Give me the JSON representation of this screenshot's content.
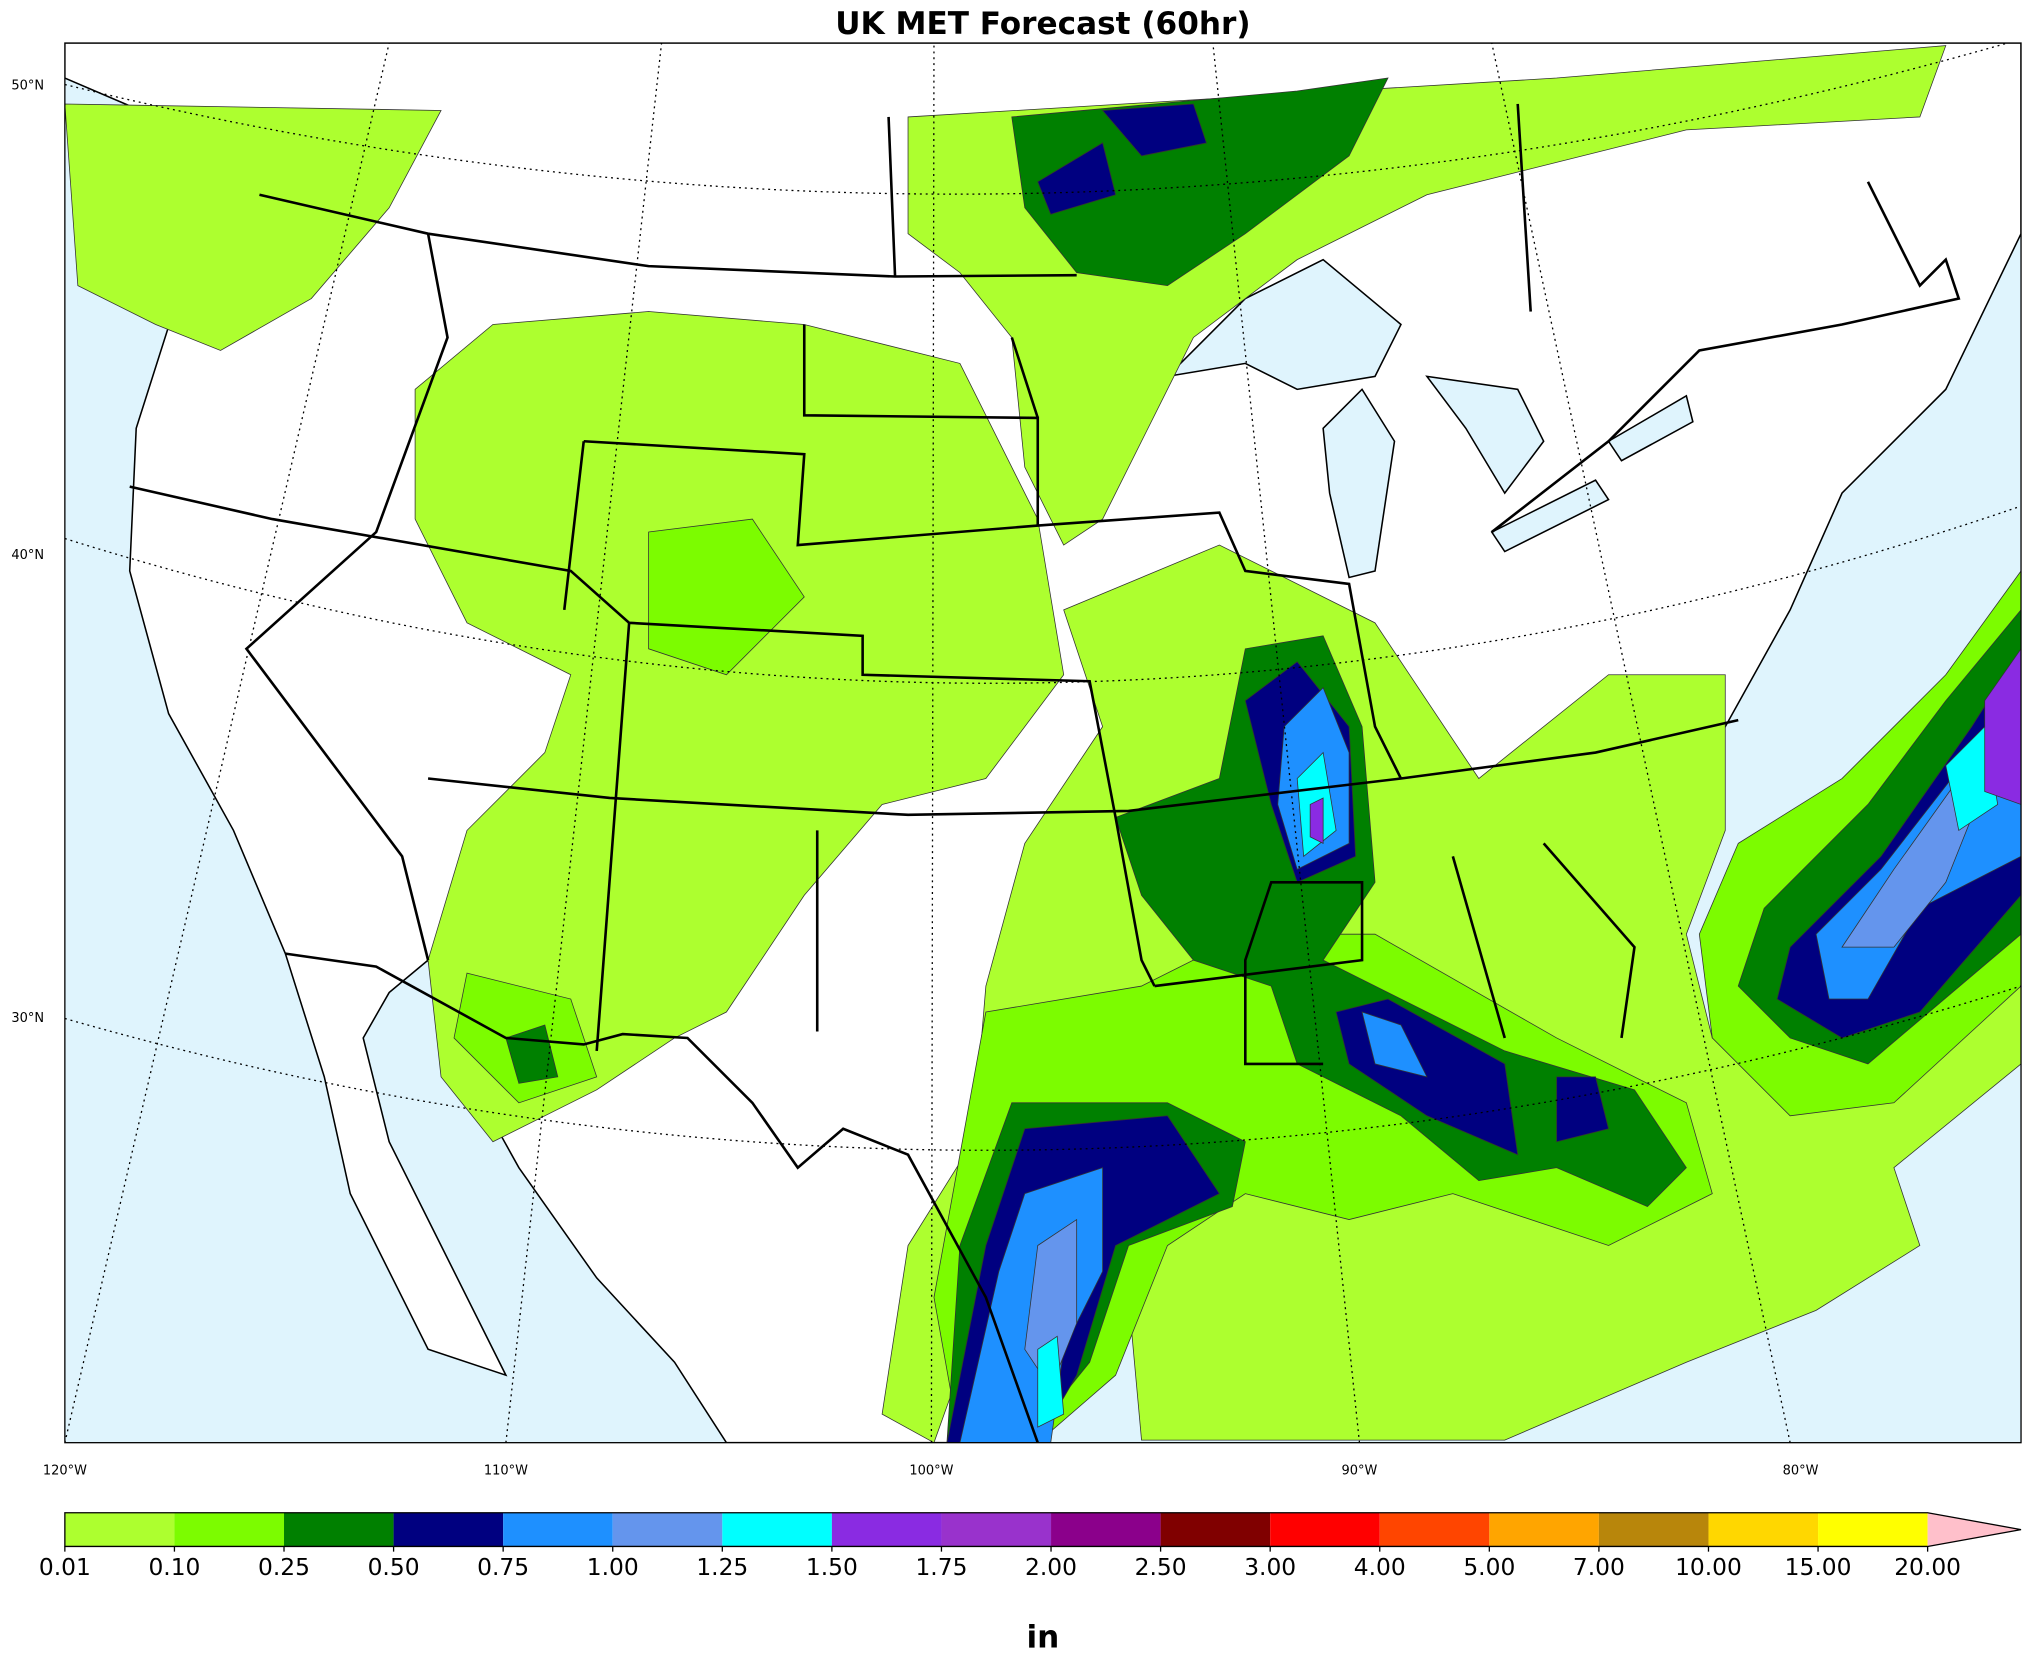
{
  "title": "UK MET Forecast (60hr)",
  "map": {
    "lat_labels": [
      "50°N",
      "40°N",
      "30°N"
    ],
    "lon_labels": [
      "120°W",
      "110°W",
      "100°W",
      "90°W",
      "80°W"
    ]
  },
  "colorbar": {
    "label": "in",
    "ticks": [
      0.01,
      {
        "value": 0.1,
        "label": "0.10"
      },
      0.25,
      {
        "value": 0.5,
        "label": "0.50"
      },
      0.75,
      {
        "value": 1,
        "label": "1.00"
      },
      1.25,
      {
        "value": 1.5,
        "label": "1.50"
      },
      1.75,
      {
        "value": 2,
        "label": "2.00"
      },
      {
        "value": 2.5,
        "label": "2.50"
      },
      {
        "value": 3,
        "label": "3.00"
      },
      {
        "value": 4,
        "label": "4.00"
      },
      {
        "value": 5,
        "label": "5.00"
      },
      {
        "value": 7,
        "label": "7.00"
      },
      {
        "value": 10,
        "label": "10.00"
      },
      {
        "value": 15,
        "label": "15.00"
      },
      {
        "value": 20,
        "label": "20.00"
      }
    ],
    "colors": [
      "#adff2f",
      "#7cfc00",
      "#008000",
      "#000080",
      "#1e90ff",
      "#6495ed",
      "#00ffff",
      "#8a2be2",
      "#9932cc",
      "#8b008b",
      "#800000",
      "#ff0000",
      "#ff4500",
      "#ffa500",
      "#b8860b",
      "#ffd700",
      "#ffff00"
    ],
    "extend_color": "#ffc0cb"
  }
}
